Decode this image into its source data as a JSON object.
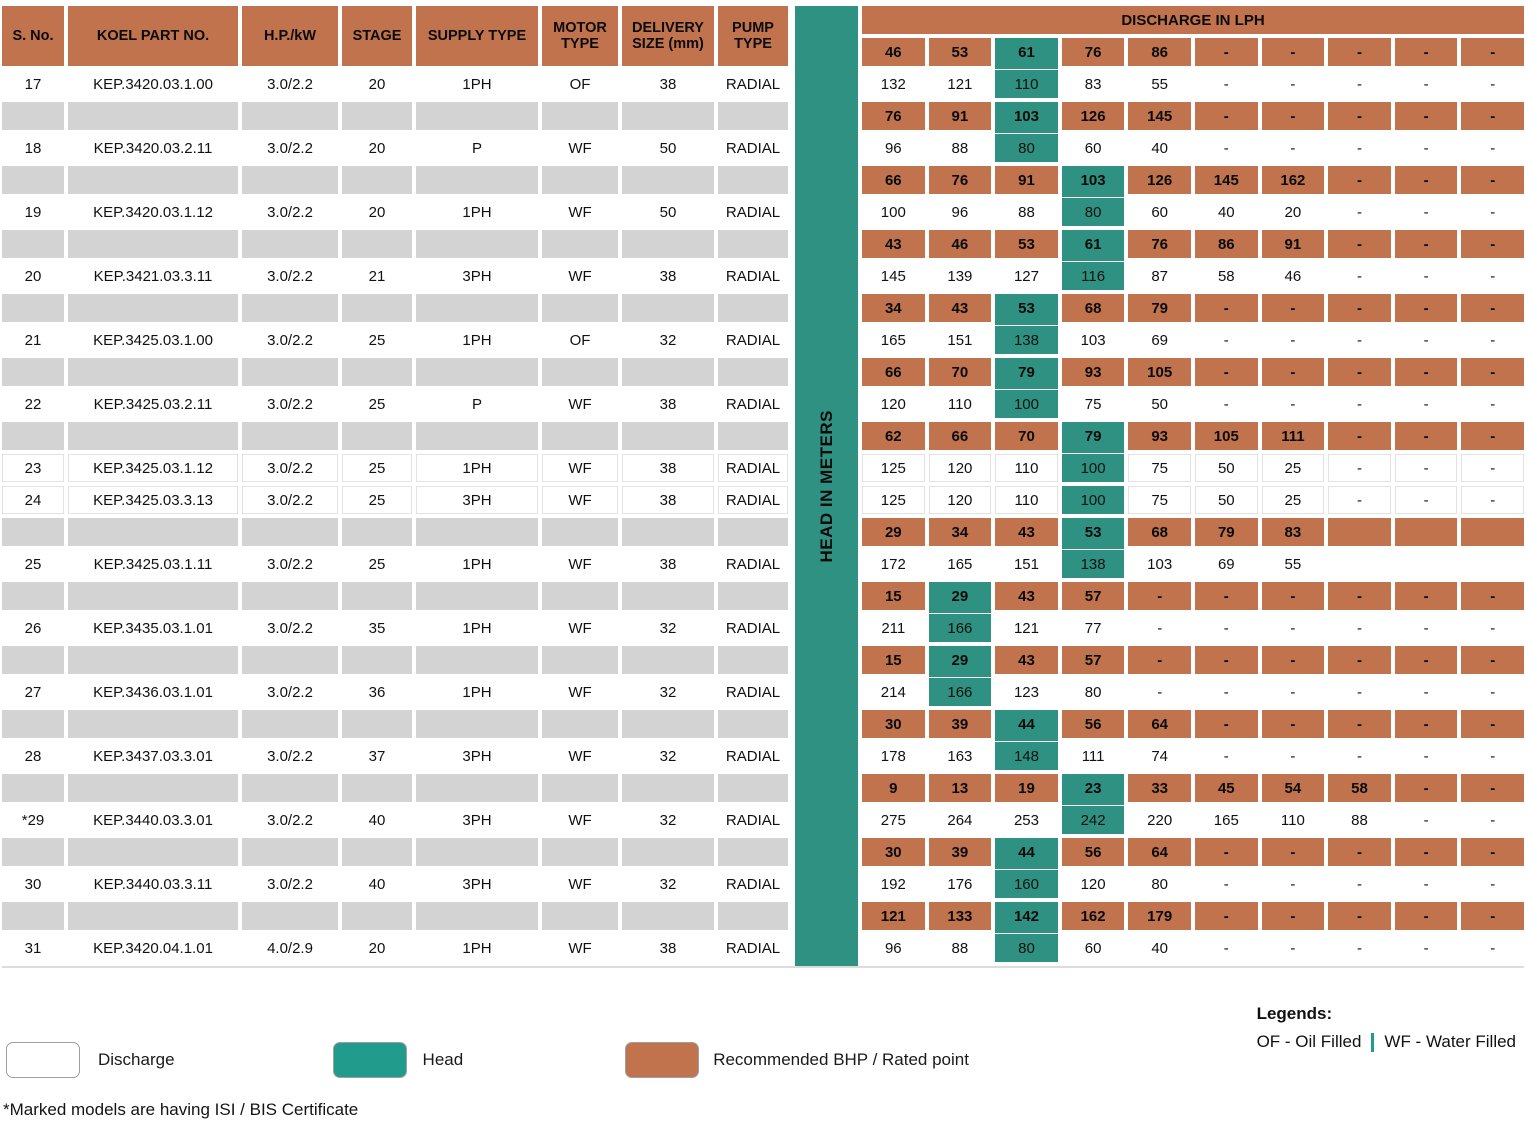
{
  "left_table": {
    "headers": [
      "S. No.",
      "KOEL PART NO.",
      "H.P./kW",
      "STAGE",
      "SUPPLY TYPE",
      "MOTOR TYPE",
      "DELIVERY SIZE (mm)",
      "PUMP TYPE"
    ],
    "rows": [
      {
        "sno": "17",
        "part": "KEP.3420.03.1.00",
        "hp": "3.0/2.2",
        "stage": "20",
        "supply": "1PH",
        "motor": "OF",
        "delivery": "38",
        "pump": "RADIAL"
      },
      {
        "spacer": true
      },
      {
        "sno": "18",
        "part": "KEP.3420.03.2.11",
        "hp": "3.0/2.2",
        "stage": "20",
        "supply": "P",
        "motor": "WF",
        "delivery": "50",
        "pump": "RADIAL"
      },
      {
        "spacer": true
      },
      {
        "sno": "19",
        "part": "KEP.3420.03.1.12",
        "hp": "3.0/2.2",
        "stage": "20",
        "supply": "1PH",
        "motor": "WF",
        "delivery": "50",
        "pump": "RADIAL"
      },
      {
        "spacer": true
      },
      {
        "sno": "20",
        "part": "KEP.3421.03.3.11",
        "hp": "3.0/2.2",
        "stage": "21",
        "supply": "3PH",
        "motor": "WF",
        "delivery": "38",
        "pump": "RADIAL"
      },
      {
        "spacer": true
      },
      {
        "sno": "21",
        "part": "KEP.3425.03.1.00",
        "hp": "3.0/2.2",
        "stage": "25",
        "supply": "1PH",
        "motor": "OF",
        "delivery": "32",
        "pump": "RADIAL"
      },
      {
        "spacer": true
      },
      {
        "sno": "22",
        "part": "KEP.3425.03.2.11",
        "hp": "3.0/2.2",
        "stage": "25",
        "supply": "P",
        "motor": "WF",
        "delivery": "38",
        "pump": "RADIAL"
      },
      {
        "spacer": true
      },
      {
        "sno": "23",
        "part": "KEP.3425.03.1.12",
        "hp": "3.0/2.2",
        "stage": "25",
        "supply": "1PH",
        "motor": "WF",
        "delivery": "38",
        "pump": "RADIAL",
        "lined": true
      },
      {
        "sno": "24",
        "part": "KEP.3425.03.3.13",
        "hp": "3.0/2.2",
        "stage": "25",
        "supply": "3PH",
        "motor": "WF",
        "delivery": "38",
        "pump": "RADIAL",
        "lined": true
      },
      {
        "spacer": true
      },
      {
        "sno": "25",
        "part": "KEP.3425.03.1.11",
        "hp": "3.0/2.2",
        "stage": "25",
        "supply": "1PH",
        "motor": "WF",
        "delivery": "38",
        "pump": "RADIAL"
      },
      {
        "spacer": true
      },
      {
        "sno": "26",
        "part": "KEP.3435.03.1.01",
        "hp": "3.0/2.2",
        "stage": "35",
        "supply": "1PH",
        "motor": "WF",
        "delivery": "32",
        "pump": "RADIAL"
      },
      {
        "spacer": true
      },
      {
        "sno": "27",
        "part": "KEP.3436.03.1.01",
        "hp": "3.0/2.2",
        "stage": "36",
        "supply": "1PH",
        "motor": "WF",
        "delivery": "32",
        "pump": "RADIAL"
      },
      {
        "spacer": true
      },
      {
        "sno": "28",
        "part": "KEP.3437.03.3.01",
        "hp": "3.0/2.2",
        "stage": "37",
        "supply": "3PH",
        "motor": "WF",
        "delivery": "32",
        "pump": "RADIAL"
      },
      {
        "spacer": true
      },
      {
        "sno": "*29",
        "part": "KEP.3440.03.3.01",
        "hp": "3.0/2.2",
        "stage": "40",
        "supply": "3PH",
        "motor": "WF",
        "delivery": "32",
        "pump": "RADIAL"
      },
      {
        "spacer": true
      },
      {
        "sno": "30",
        "part": "KEP.3440.03.3.11",
        "hp": "3.0/2.2",
        "stage": "40",
        "supply": "3PH",
        "motor": "WF",
        "delivery": "32",
        "pump": "RADIAL"
      },
      {
        "spacer": true
      },
      {
        "sno": "31",
        "part": "KEP.3420.04.1.01",
        "hp": "4.0/2.9",
        "stage": "20",
        "supply": "1PH",
        "motor": "WF",
        "delivery": "38",
        "pump": "RADIAL"
      }
    ]
  },
  "head_axis_label": "HEAD IN METERS",
  "right_table": {
    "title": "DISCHARGE IN LPH",
    "rows": [
      {
        "kind": "head",
        "rated": 2,
        "cells": [
          "46",
          "53",
          "61",
          "76",
          "86",
          "-",
          "-",
          "-",
          "-",
          "-"
        ]
      },
      {
        "kind": "discharge",
        "rated": 2,
        "cells": [
          "132",
          "121",
          "110",
          "83",
          "55",
          "-",
          "-",
          "-",
          "-",
          "-"
        ]
      },
      {
        "kind": "head",
        "rated": 2,
        "cells": [
          "76",
          "91",
          "103",
          "126",
          "145",
          "-",
          "-",
          "-",
          "-",
          "-"
        ]
      },
      {
        "kind": "discharge",
        "rated": 2,
        "cells": [
          "96",
          "88",
          "80",
          "60",
          "40",
          "-",
          "-",
          "-",
          "-",
          "-"
        ]
      },
      {
        "kind": "head",
        "rated": 3,
        "cells": [
          "66",
          "76",
          "91",
          "103",
          "126",
          "145",
          "162",
          "-",
          "-",
          "-"
        ]
      },
      {
        "kind": "discharge",
        "rated": 3,
        "cells": [
          "100",
          "96",
          "88",
          "80",
          "60",
          "40",
          "20",
          "-",
          "-",
          "-"
        ]
      },
      {
        "kind": "head",
        "rated": 3,
        "cells": [
          "43",
          "46",
          "53",
          "61",
          "76",
          "86",
          "91",
          "-",
          "-",
          "-"
        ]
      },
      {
        "kind": "discharge",
        "rated": 3,
        "cells": [
          "145",
          "139",
          "127",
          "116",
          "87",
          "58",
          "46",
          "-",
          "-",
          "-"
        ]
      },
      {
        "kind": "head",
        "rated": 2,
        "cells": [
          "34",
          "43",
          "53",
          "68",
          "79",
          "-",
          "-",
          "-",
          "-",
          "-"
        ]
      },
      {
        "kind": "discharge",
        "rated": 2,
        "cells": [
          "165",
          "151",
          "138",
          "103",
          "69",
          "-",
          "-",
          "-",
          "-",
          "-"
        ]
      },
      {
        "kind": "head",
        "rated": 2,
        "cells": [
          "66",
          "70",
          "79",
          "93",
          "105",
          "-",
          "-",
          "-",
          "-",
          "-"
        ]
      },
      {
        "kind": "discharge",
        "rated": 2,
        "cells": [
          "120",
          "110",
          "100",
          "75",
          "50",
          "-",
          "-",
          "-",
          "-",
          "-"
        ]
      },
      {
        "kind": "head",
        "rated": 3,
        "cells": [
          "62",
          "66",
          "70",
          "79",
          "93",
          "105",
          "111",
          "-",
          "-",
          "-"
        ]
      },
      {
        "kind": "discharge",
        "rated": 3,
        "lined": true,
        "cells": [
          "125",
          "120",
          "110",
          "100",
          "75",
          "50",
          "25",
          "-",
          "-",
          "-"
        ]
      },
      {
        "kind": "discharge",
        "rated": 3,
        "lined": true,
        "cells": [
          "125",
          "120",
          "110",
          "100",
          "75",
          "50",
          "25",
          "-",
          "-",
          "-"
        ]
      },
      {
        "kind": "head",
        "rated": 3,
        "cells": [
          "29",
          "34",
          "43",
          "53",
          "68",
          "79",
          "83",
          "",
          "",
          ""
        ]
      },
      {
        "kind": "discharge",
        "rated": 3,
        "cells": [
          "172",
          "165",
          "151",
          "138",
          "103",
          "69",
          "55",
          "",
          "",
          ""
        ]
      },
      {
        "kind": "head",
        "rated": 1,
        "cells": [
          "15",
          "29",
          "43",
          "57",
          "-",
          "-",
          "-",
          "-",
          "-",
          "-"
        ]
      },
      {
        "kind": "discharge",
        "rated": 1,
        "cells": [
          "211",
          "166",
          "121",
          "77",
          "-",
          "-",
          "-",
          "-",
          "-",
          "-"
        ]
      },
      {
        "kind": "head",
        "rated": 1,
        "cells": [
          "15",
          "29",
          "43",
          "57",
          "-",
          "-",
          "-",
          "-",
          "-",
          "-"
        ]
      },
      {
        "kind": "discharge",
        "rated": 1,
        "cells": [
          "214",
          "166",
          "123",
          "80",
          "-",
          "-",
          "-",
          "-",
          "-",
          "-"
        ]
      },
      {
        "kind": "head",
        "rated": 2,
        "cells": [
          "30",
          "39",
          "44",
          "56",
          "64",
          "-",
          "-",
          "-",
          "-",
          "-"
        ]
      },
      {
        "kind": "discharge",
        "rated": 2,
        "cells": [
          "178",
          "163",
          "148",
          "111",
          "74",
          "-",
          "-",
          "-",
          "-",
          "-"
        ]
      },
      {
        "kind": "head",
        "rated": 3,
        "cells": [
          "9",
          "13",
          "19",
          "23",
          "33",
          "45",
          "54",
          "58",
          "-",
          "-"
        ]
      },
      {
        "kind": "discharge",
        "rated": 3,
        "cells": [
          "275",
          "264",
          "253",
          "242",
          "220",
          "165",
          "110",
          "88",
          "-",
          "-"
        ]
      },
      {
        "kind": "head",
        "rated": 2,
        "cells": [
          "30",
          "39",
          "44",
          "56",
          "64",
          "-",
          "-",
          "-",
          "-",
          "-"
        ]
      },
      {
        "kind": "discharge",
        "rated": 2,
        "cells": [
          "192",
          "176",
          "160",
          "120",
          "80",
          "-",
          "-",
          "-",
          "-",
          "-"
        ]
      },
      {
        "kind": "head",
        "rated": 2,
        "cells": [
          "121",
          "133",
          "142",
          "162",
          "179",
          "-",
          "-",
          "-",
          "-",
          "-"
        ]
      },
      {
        "kind": "discharge",
        "rated": 2,
        "cells": [
          "96",
          "88",
          "80",
          "60",
          "40",
          "-",
          "-",
          "-",
          "-",
          "-"
        ]
      }
    ]
  },
  "legend": {
    "discharge_label": "Discharge",
    "head_label": "Head",
    "rated_label": "Recommended BHP / Rated point",
    "legends_title": "Legends:",
    "oil_filled": "OF - Oil Filled",
    "water_filled": "WF - Water Filled"
  },
  "footnote": "*Marked models are having ISI / BIS Certificate",
  "colors": {
    "orange": "#c0734d",
    "teal": "#2f9181",
    "legend_teal": "#219b8b",
    "spacer_gray": "#d3d3d3"
  }
}
